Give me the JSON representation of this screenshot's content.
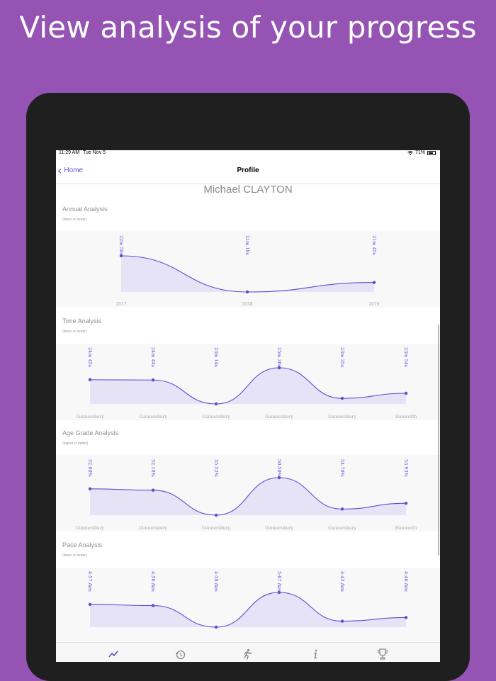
{
  "headline": "View analysis of your progress",
  "status_bar": {
    "time": "11:29 AM",
    "date": "Tue Nov 5",
    "battery": "71%"
  },
  "nav": {
    "back_label": "Home",
    "title": "Profile"
  },
  "profile_name": "Michael CLAYTON",
  "colors": {
    "accent": "#5b4fd1",
    "fill": "#e6e3f7",
    "background": "#9553b3",
    "device": "#1f1f1f"
  },
  "sections": [
    {
      "title": "Annual Analysis",
      "subtitle": "(lower is better)",
      "chart_data": {
        "type": "line",
        "x": [
          "2017",
          "2018",
          "2019"
        ],
        "labels": [
          "22m 58s",
          "21m 19s",
          "21m 45s"
        ],
        "y_seconds": [
          1378,
          1279,
          1305
        ]
      }
    },
    {
      "title": "Time Analysis",
      "subtitle": "(lower is better)",
      "chart_data": {
        "type": "line",
        "x": [
          "Gunnersbury",
          "Gunnersbury",
          "Gunnersbury",
          "Gunnersbury",
          "Gunnersbury",
          "Hanworth"
        ],
        "labels": [
          "24m 45s",
          "24m 44s",
          "23m 14s",
          "25m 30s",
          "23m 35s",
          "23m 54s"
        ],
        "y_seconds": [
          1485,
          1484,
          1394,
          1530,
          1415,
          1434
        ]
      }
    },
    {
      "title": "Age Grade Analysis",
      "subtitle": "(higher is better)",
      "chart_data": {
        "type": "line",
        "x": [
          "Gunnersbury",
          "Gunnersbury",
          "Gunnersbury",
          "Gunnersbury",
          "Gunnersbury",
          "Hanworth"
        ],
        "labels": [
          "52.00%",
          "52.18%",
          "55.52%",
          "50.50%",
          "54.70%",
          "53.93%"
        ],
        "y_percent": [
          52.0,
          52.18,
          55.52,
          50.5,
          54.7,
          53.93
        ]
      }
    },
    {
      "title": "Pace Analysis",
      "subtitle": "(lower is better)",
      "chart_data": {
        "type": "line",
        "x": [],
        "labels": [
          "4:57 /km",
          "4:56 /km",
          "4:38 /km",
          "5:07 /km",
          "4:43 /km",
          "4:46 /km"
        ],
        "y_seconds_per_km": [
          297,
          296,
          278,
          307,
          283,
          286
        ]
      }
    }
  ],
  "tabs": [
    {
      "icon": "trend-chart-icon",
      "active": true
    },
    {
      "icon": "history-icon",
      "active": false
    },
    {
      "icon": "runner-icon",
      "active": false
    },
    {
      "icon": "info-icon",
      "active": false
    },
    {
      "icon": "trophy-icon",
      "active": false
    }
  ]
}
